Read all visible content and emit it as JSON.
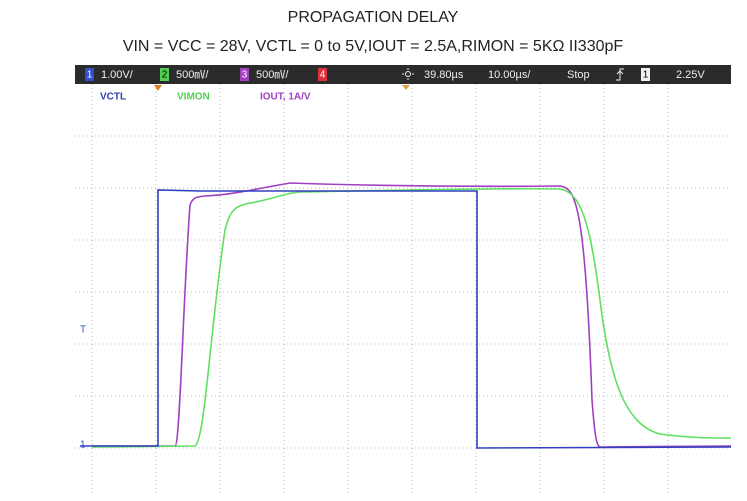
{
  "header": {
    "title": "PROPAGATION DELAY",
    "subtitle": "VIN = VCC = 28V,  VCTL = 0  to  5V,IOUT = 2.5A,RIMON = 5KΩ  II330pF"
  },
  "scope": {
    "status_bar": {
      "ch1": {
        "number": "1",
        "scale": "1.00V/"
      },
      "ch2": {
        "number": "2",
        "scale": "500㎷/"
      },
      "ch3": {
        "number": "3",
        "scale": "500㎷/"
      },
      "ch4": {
        "number": "4"
      },
      "delay": "39.80µs",
      "timebase": "10.00µs/",
      "run_state": "Stop",
      "trigger_channel": "1",
      "trigger_level": "2.25V"
    },
    "trace_labels": [
      "VCTL",
      "VIMON",
      "IOUT, 1A/V"
    ],
    "markers": {
      "trigger": "T",
      "ground": "1"
    }
  }
}
